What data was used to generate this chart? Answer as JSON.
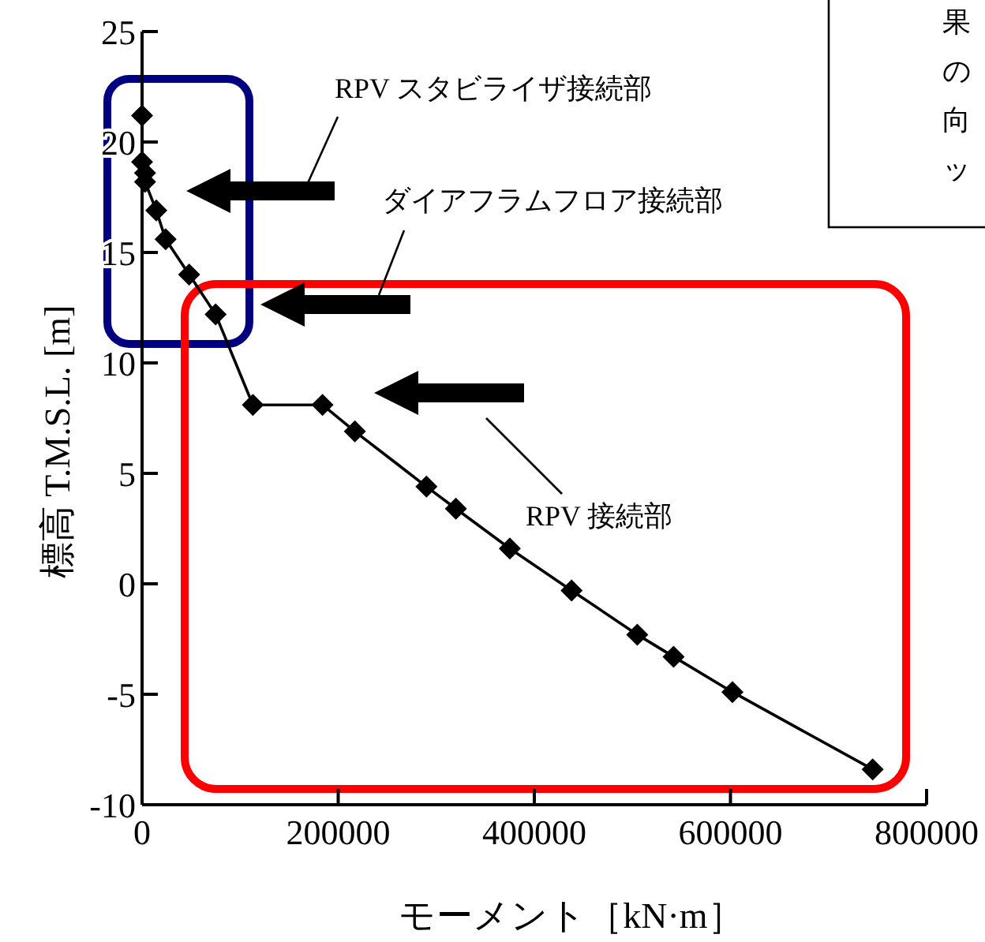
{
  "chart_data": {
    "type": "line",
    "xlabel": "モーメント［kN·m］",
    "ylabel": "標高 T.M.S.L. [m]",
    "x": [
      0,
      0,
      3000,
      3000,
      14500,
      24000,
      48000,
      75000,
      113000,
      184000,
      217000,
      290000,
      320000,
      375000,
      438000,
      505000,
      542000,
      602000,
      745000
    ],
    "series": [
      {
        "color": "#000000",
        "values": [
          21.2,
          19.1,
          18.6,
          18.2,
          16.9,
          15.6,
          14.0,
          12.2,
          8.1,
          8.1,
          6.9,
          4.4,
          3.4,
          1.6,
          -0.3,
          -2.3,
          -3.3,
          -4.9,
          -8.4
        ]
      }
    ],
    "xlim": [
      0,
      800000
    ],
    "xticks": [
      0,
      200000,
      400000,
      600000,
      800000
    ],
    "ylim": [
      -10,
      25
    ],
    "yticks": [
      -10,
      -5,
      0,
      5,
      10,
      15,
      20,
      25
    ],
    "marker": "diamond",
    "line_style": "solid",
    "grid": false,
    "annotations": [
      "RPV スタビライザ接続部",
      "ダイアフラムフロア接続部",
      "RPV 接続部",
      "果の向ッ"
    ]
  }
}
